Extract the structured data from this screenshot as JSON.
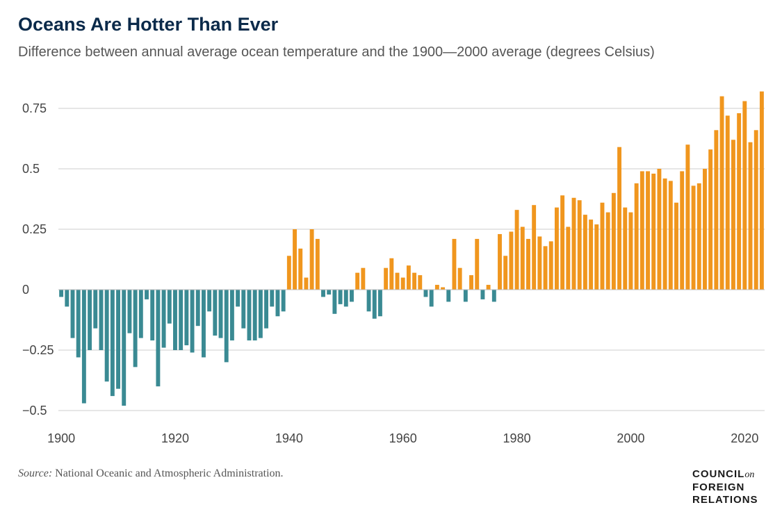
{
  "header": {
    "title": "Oceans Are Hotter Than Ever",
    "subtitle": "Difference between annual average ocean temperature and the 1900—2000 average (degrees Celsius)"
  },
  "footer": {
    "source_label": "Source:",
    "source_text": " National Oceanic and Atmospheric Administration."
  },
  "logo": {
    "line1": "COUNCIL",
    "line1_suffix": "on",
    "line2": "FOREIGN",
    "line3": "RELATIONS"
  },
  "colors": {
    "negative": "#3a8a93",
    "positive": "#f0961e",
    "grid": "#cccccc",
    "zero_line": "#bbbbbb"
  },
  "chart_data": {
    "type": "bar",
    "title": "Oceans Are Hotter Than Ever",
    "subtitle": "Difference between annual average ocean temperature and the 1900—2000 average (degrees Celsius)",
    "xlabel": "",
    "ylabel": "",
    "x_start": 1900,
    "x_end": 2023,
    "ylim": [
      -0.5,
      0.82
    ],
    "y_ticks": [
      0.75,
      0.5,
      0.25,
      0,
      -0.25,
      -0.5
    ],
    "y_tick_labels": [
      "0.75",
      "0.5",
      "0.25",
      "0",
      "−0.25",
      "−0.5"
    ],
    "x_ticks": [
      1900,
      1920,
      1940,
      1960,
      1980,
      2000,
      2020
    ],
    "x_tick_labels": [
      "1900",
      "1920",
      "1940",
      "1960",
      "1980",
      "2000",
      "2020"
    ],
    "grid": true,
    "legend": "none",
    "years": [
      1900,
      1901,
      1902,
      1903,
      1904,
      1905,
      1906,
      1907,
      1908,
      1909,
      1910,
      1911,
      1912,
      1913,
      1914,
      1915,
      1916,
      1917,
      1918,
      1919,
      1920,
      1921,
      1922,
      1923,
      1924,
      1925,
      1926,
      1927,
      1928,
      1929,
      1930,
      1931,
      1932,
      1933,
      1934,
      1935,
      1936,
      1937,
      1938,
      1939,
      1940,
      1941,
      1942,
      1943,
      1944,
      1945,
      1946,
      1947,
      1948,
      1949,
      1950,
      1951,
      1952,
      1953,
      1954,
      1955,
      1956,
      1957,
      1958,
      1959,
      1960,
      1961,
      1962,
      1963,
      1964,
      1965,
      1966,
      1967,
      1968,
      1969,
      1970,
      1971,
      1972,
      1973,
      1974,
      1975,
      1976,
      1977,
      1978,
      1979,
      1980,
      1981,
      1982,
      1983,
      1984,
      1985,
      1986,
      1987,
      1988,
      1989,
      1990,
      1991,
      1992,
      1993,
      1994,
      1995,
      1996,
      1997,
      1998,
      1999,
      2000,
      2001,
      2002,
      2003,
      2004,
      2005,
      2006,
      2007,
      2008,
      2009,
      2010,
      2011,
      2012,
      2013,
      2014,
      2015,
      2016,
      2017,
      2018,
      2019,
      2020,
      2021,
      2022,
      2023
    ],
    "values": [
      -0.03,
      -0.07,
      -0.2,
      -0.28,
      -0.47,
      -0.25,
      -0.16,
      -0.25,
      -0.38,
      -0.44,
      -0.41,
      -0.48,
      -0.18,
      -0.32,
      -0.2,
      -0.04,
      -0.21,
      -0.4,
      -0.24,
      -0.14,
      -0.25,
      -0.25,
      -0.23,
      -0.26,
      -0.15,
      -0.28,
      -0.09,
      -0.19,
      -0.2,
      -0.3,
      -0.21,
      -0.07,
      -0.16,
      -0.21,
      -0.21,
      -0.2,
      -0.16,
      -0.07,
      -0.11,
      -0.09,
      0.14,
      0.25,
      0.17,
      0.05,
      0.25,
      0.21,
      -0.03,
      -0.02,
      -0.1,
      -0.06,
      -0.07,
      -0.05,
      0.07,
      0.09,
      -0.09,
      -0.12,
      -0.11,
      0.09,
      0.13,
      0.07,
      0.05,
      0.1,
      0.07,
      0.06,
      -0.03,
      -0.07,
      0.02,
      0.01,
      -0.05,
      0.21,
      0.09,
      -0.05,
      0.06,
      0.21,
      -0.04,
      0.02,
      -0.05,
      0.23,
      0.14,
      0.24,
      0.33,
      0.26,
      0.21,
      0.35,
      0.22,
      0.18,
      0.2,
      0.34,
      0.39,
      0.26,
      0.38,
      0.37,
      0.31,
      0.29,
      0.27,
      0.36,
      0.32,
      0.4,
      0.59,
      0.34,
      0.32,
      0.44,
      0.49,
      0.49,
      0.48,
      0.5,
      0.46,
      0.45,
      0.36,
      0.49,
      0.6,
      0.43,
      0.44,
      0.5,
      0.58,
      0.66,
      0.8,
      0.72,
      0.62,
      0.73,
      0.78,
      0.61,
      0.66,
      0.82
    ]
  }
}
